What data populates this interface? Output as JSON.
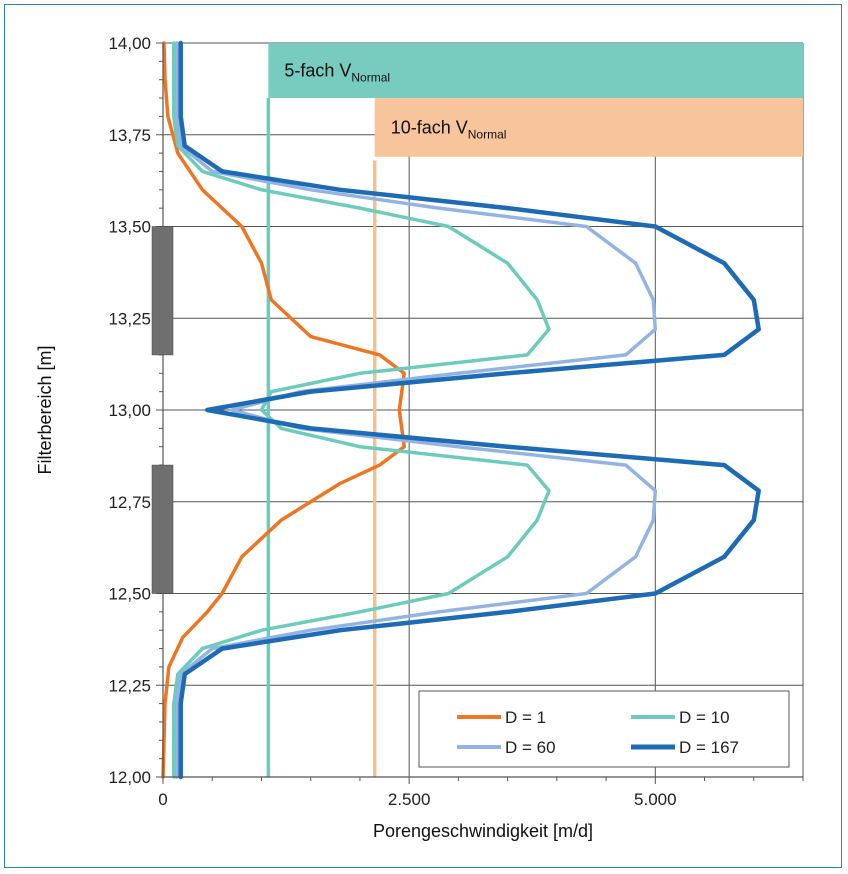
{
  "chart_data": {
    "type": "line",
    "orientation": "vertical-profile",
    "xlabel": "Porengeschwindigkeit [m/d]",
    "ylabel": "Filterbereich [m]",
    "xlim": [
      0,
      6500
    ],
    "ylim": [
      12.0,
      14.0
    ],
    "x_ticks": [
      0,
      2500,
      5000
    ],
    "x_tick_labels": [
      "0",
      "2.500",
      "5.000"
    ],
    "y_ticks": [
      12.0,
      12.25,
      12.5,
      12.75,
      13.0,
      13.25,
      13.5,
      13.75,
      14.0
    ],
    "y_tick_labels": [
      "12,00",
      "12,25",
      "12,50",
      "12,75",
      "13,00",
      "13,25",
      "13,50",
      "13,75",
      "14,00"
    ],
    "grid": true,
    "legend_position": "bottom-right",
    "series": [
      {
        "name": "D = 1",
        "color": "#ee7623",
        "points": [
          [
            0,
            12.0
          ],
          [
            20,
            12.2
          ],
          [
            60,
            12.3
          ],
          [
            200,
            12.38
          ],
          [
            450,
            12.45
          ],
          [
            600,
            12.5
          ],
          [
            800,
            12.6
          ],
          [
            1200,
            12.7
          ],
          [
            1800,
            12.8
          ],
          [
            2200,
            12.85
          ],
          [
            2450,
            12.9
          ],
          [
            2400,
            13.0
          ],
          [
            2450,
            13.1
          ],
          [
            2200,
            13.15
          ],
          [
            1500,
            13.2
          ],
          [
            1100,
            13.3
          ],
          [
            1000,
            13.4
          ],
          [
            800,
            13.5
          ],
          [
            400,
            13.6
          ],
          [
            150,
            13.7
          ],
          [
            50,
            13.8
          ],
          [
            20,
            13.9
          ],
          [
            10,
            14.0
          ]
        ]
      },
      {
        "name": "D = 10",
        "color": "#6ccbbb",
        "points": [
          [
            110,
            12.0
          ],
          [
            110,
            12.2
          ],
          [
            150,
            12.28
          ],
          [
            400,
            12.35
          ],
          [
            1000,
            12.4
          ],
          [
            2000,
            12.45
          ],
          [
            2900,
            12.5
          ],
          [
            3500,
            12.6
          ],
          [
            3800,
            12.7
          ],
          [
            3920,
            12.78
          ],
          [
            3700,
            12.85
          ],
          [
            2000,
            12.9
          ],
          [
            1200,
            12.95
          ],
          [
            1000,
            13.0
          ],
          [
            1100,
            13.05
          ],
          [
            2000,
            13.1
          ],
          [
            3700,
            13.15
          ],
          [
            3920,
            13.22
          ],
          [
            3800,
            13.3
          ],
          [
            3500,
            13.4
          ],
          [
            2900,
            13.5
          ],
          [
            2000,
            13.55
          ],
          [
            1000,
            13.6
          ],
          [
            400,
            13.65
          ],
          [
            150,
            13.72
          ],
          [
            110,
            13.8
          ],
          [
            110,
            14.0
          ]
        ]
      },
      {
        "name": "D = 60",
        "color": "#93b4e2",
        "points": [
          [
            140,
            12.0
          ],
          [
            140,
            12.2
          ],
          [
            180,
            12.28
          ],
          [
            500,
            12.35
          ],
          [
            1500,
            12.4
          ],
          [
            2800,
            12.45
          ],
          [
            4300,
            12.5
          ],
          [
            4800,
            12.6
          ],
          [
            4980,
            12.7
          ],
          [
            5000,
            12.78
          ],
          [
            4700,
            12.85
          ],
          [
            3000,
            12.9
          ],
          [
            1400,
            12.95
          ],
          [
            700,
            13.0
          ],
          [
            1400,
            13.05
          ],
          [
            3000,
            13.1
          ],
          [
            4700,
            13.15
          ],
          [
            5000,
            13.22
          ],
          [
            4980,
            13.3
          ],
          [
            4800,
            13.4
          ],
          [
            4300,
            13.5
          ],
          [
            2800,
            13.55
          ],
          [
            1500,
            13.6
          ],
          [
            500,
            13.65
          ],
          [
            180,
            13.72
          ],
          [
            140,
            13.8
          ],
          [
            140,
            14.0
          ]
        ]
      },
      {
        "name": "D = 167",
        "color": "#1d6bb5",
        "points": [
          [
            180,
            12.0
          ],
          [
            180,
            12.2
          ],
          [
            220,
            12.28
          ],
          [
            600,
            12.35
          ],
          [
            1800,
            12.4
          ],
          [
            3500,
            12.45
          ],
          [
            5000,
            12.5
          ],
          [
            5700,
            12.6
          ],
          [
            6000,
            12.7
          ],
          [
            6050,
            12.78
          ],
          [
            5700,
            12.85
          ],
          [
            3500,
            12.9
          ],
          [
            1500,
            12.95
          ],
          [
            450,
            13.0
          ],
          [
            1500,
            13.05
          ],
          [
            3500,
            13.1
          ],
          [
            5700,
            13.15
          ],
          [
            6050,
            13.22
          ],
          [
            6000,
            13.3
          ],
          [
            5700,
            13.4
          ],
          [
            5000,
            13.5
          ],
          [
            3500,
            13.55
          ],
          [
            1800,
            13.6
          ],
          [
            600,
            13.65
          ],
          [
            220,
            13.72
          ],
          [
            180,
            13.8
          ],
          [
            180,
            14.0
          ]
        ]
      }
    ],
    "reference_lines": [
      {
        "label_main": "5-fach V",
        "label_sub": "Normal",
        "x": 1070,
        "y_top": 13.85,
        "band_y_top": 14.0,
        "band_y_bottom": 13.85,
        "band_x_start": 1070,
        "color": "#6ccbbb",
        "band_color": "#78cbbf"
      },
      {
        "label_main": "10-fach V",
        "label_sub": "Normal",
        "x": 2150,
        "y_top": 13.68,
        "band_y_top": 13.85,
        "band_y_bottom": 13.69,
        "band_x_start": 2150,
        "color": "#f5c08f",
        "band_color": "#f8c49b"
      }
    ],
    "filter_segments": [
      {
        "y_from": 13.15,
        "y_to": 13.5,
        "color": "#6f6f6f"
      },
      {
        "y_from": 12.5,
        "y_to": 12.85,
        "color": "#6f6f6f"
      }
    ],
    "legend": [
      {
        "label": "D = 1",
        "color": "#ee7623"
      },
      {
        "label": "D = 10",
        "color": "#6ccbbb"
      },
      {
        "label": "D = 60",
        "color": "#93b4e2"
      },
      {
        "label": "D = 167",
        "color": "#1d6bb5"
      }
    ]
  }
}
